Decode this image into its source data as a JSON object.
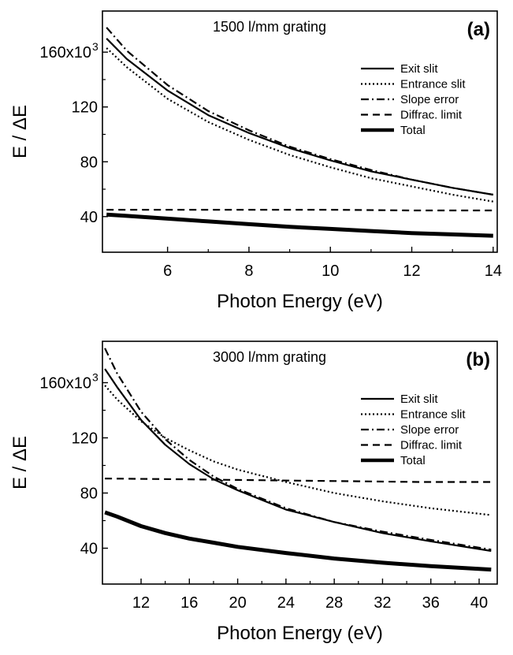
{
  "chart_data": [
    {
      "type": "line",
      "panel_label": "(a)",
      "annotation": "1500 l/mm grating",
      "xlabel": "Photon Energy (eV)",
      "ylabel": "E / ΔE",
      "xlim": [
        4.4,
        14.1
      ],
      "ylim": [
        14000,
        190000
      ],
      "xticks": [
        6,
        8,
        10,
        12,
        14
      ],
      "xtick_labels": [
        "6",
        "8",
        "10",
        "12",
        "14"
      ],
      "yticks": [
        40000,
        80000,
        120000,
        160000
      ],
      "ytick_labels": [
        "40",
        "80",
        "120",
        "160x10"
      ],
      "ytick_exponent": "3",
      "grid": false,
      "legend_position": "top-right",
      "series": [
        {
          "name": "Exit slit",
          "style": "solid",
          "x": [
            4.5,
            5,
            6,
            7,
            8,
            9,
            10,
            11,
            12,
            13,
            14
          ],
          "y": [
            170000,
            155000,
            132000,
            114000,
            101000,
            90000,
            81000,
            73000,
            67000,
            61000,
            56000
          ]
        },
        {
          "name": "Entrance slit",
          "style": "dotted",
          "x": [
            4.5,
            5,
            6,
            7,
            8,
            9,
            10,
            11,
            12,
            13,
            14
          ],
          "y": [
            163000,
            149000,
            126000,
            109000,
            96000,
            85000,
            76000,
            68000,
            62000,
            56000,
            51000
          ]
        },
        {
          "name": "Slope error",
          "style": "dashdot",
          "x": [
            4.5,
            5,
            6,
            7,
            8,
            9,
            10,
            11,
            12,
            13,
            14
          ],
          "y": [
            178000,
            161000,
            136000,
            117000,
            103000,
            91000,
            82000,
            74000,
            67000,
            61000,
            56000
          ]
        },
        {
          "name": "Diffrac. limit",
          "style": "dashed",
          "x": [
            4.5,
            6,
            8,
            10,
            12,
            14
          ],
          "y": [
            45000,
            45000,
            45000,
            45000,
            44500,
            44500
          ]
        },
        {
          "name": "Total",
          "style": "thick",
          "x": [
            4.5,
            5,
            6,
            7,
            8,
            9,
            10,
            11,
            12,
            13,
            14
          ],
          "y": [
            41500,
            40500,
            38500,
            36500,
            34500,
            32500,
            31000,
            29500,
            28000,
            27000,
            26000
          ]
        }
      ]
    },
    {
      "type": "line",
      "panel_label": "(b)",
      "annotation": "3000 l/mm grating",
      "xlabel": "Photon Energy (eV)",
      "ylabel": "E / ΔE",
      "xlim": [
        8.8,
        41.5
      ],
      "ylim": [
        14000,
        190000
      ],
      "xticks": [
        12,
        16,
        20,
        24,
        28,
        32,
        36,
        40
      ],
      "xtick_labels": [
        "12",
        "16",
        "20",
        "24",
        "28",
        "32",
        "36",
        "40"
      ],
      "yticks": [
        40000,
        80000,
        120000,
        160000
      ],
      "ytick_labels": [
        "40",
        "80",
        "120",
        "160x10"
      ],
      "ytick_exponent": "3",
      "grid": false,
      "legend_position": "top-right",
      "series": [
        {
          "name": "Exit slit",
          "style": "solid",
          "x": [
            9,
            10,
            12,
            14,
            16,
            18,
            20,
            24,
            28,
            32,
            36,
            41
          ],
          "y": [
            170000,
            157000,
            133000,
            115000,
            101000,
            90000,
            82000,
            68000,
            59000,
            51000,
            45000,
            38000
          ]
        },
        {
          "name": "Entrance slit",
          "style": "dotted",
          "x": [
            9,
            10,
            12,
            14,
            16,
            18,
            20,
            24,
            28,
            32,
            36,
            41
          ],
          "y": [
            158000,
            148000,
            132000,
            120000,
            111000,
            103000,
            97000,
            88000,
            80000,
            74000,
            69000,
            64000
          ]
        },
        {
          "name": "Slope error",
          "style": "dashdot",
          "x": [
            9,
            10,
            12,
            14,
            16,
            18,
            20,
            24,
            28,
            32,
            36,
            41
          ],
          "y": [
            185000,
            167000,
            139000,
            119000,
            104000,
            92000,
            83000,
            69000,
            59000,
            52000,
            46000,
            39000
          ]
        },
        {
          "name": "Diffrac. limit",
          "style": "dashed",
          "x": [
            9,
            15,
            20,
            25,
            30,
            35,
            41
          ],
          "y": [
            90500,
            90000,
            89500,
            89000,
            88500,
            88000,
            88000
          ]
        },
        {
          "name": "Total",
          "style": "thick",
          "x": [
            9,
            10,
            12,
            14,
            16,
            18,
            20,
            24,
            28,
            32,
            36,
            41
          ],
          "y": [
            66000,
            63000,
            56000,
            51000,
            47000,
            44000,
            41000,
            36500,
            32500,
            29500,
            27000,
            24500
          ]
        }
      ]
    }
  ]
}
